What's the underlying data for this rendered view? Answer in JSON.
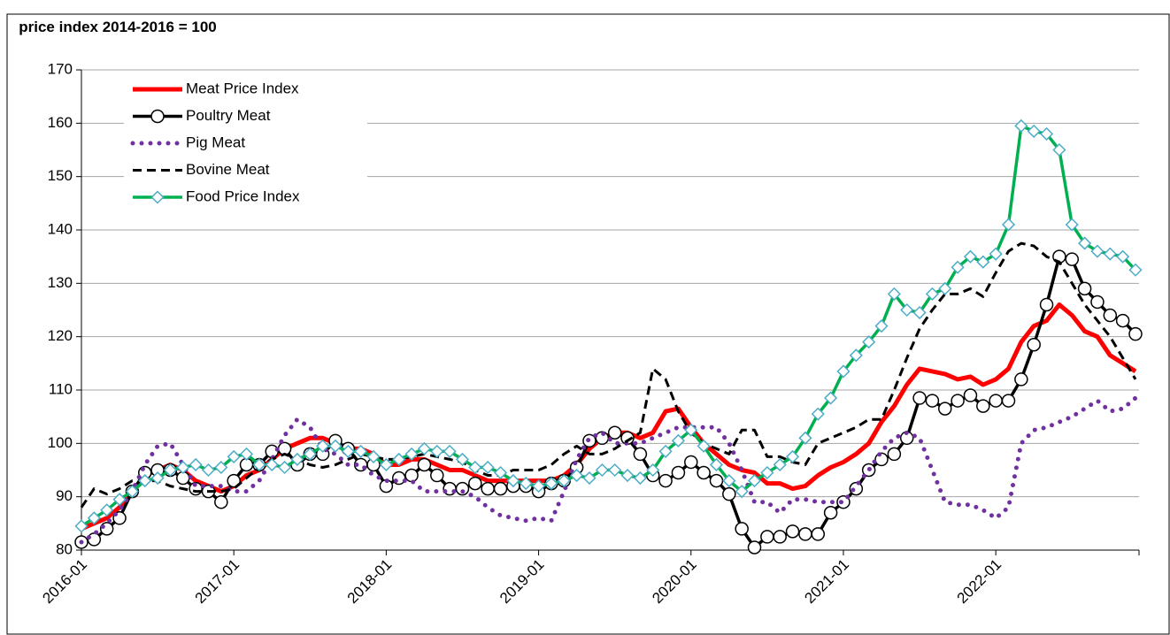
{
  "chart_data": {
    "type": "line",
    "y_label": "price index 2014-2016 = 100",
    "x": [
      "2016-01",
      null,
      null,
      null,
      null,
      null,
      null,
      null,
      null,
      null,
      null,
      null,
      "2017-01",
      null,
      null,
      null,
      null,
      null,
      null,
      null,
      null,
      null,
      null,
      null,
      "2018-01",
      null,
      null,
      null,
      null,
      null,
      null,
      null,
      null,
      null,
      null,
      null,
      "2019-01",
      null,
      null,
      null,
      null,
      null,
      null,
      null,
      null,
      null,
      null,
      null,
      "2020-01",
      null,
      null,
      null,
      null,
      null,
      null,
      null,
      null,
      null,
      null,
      null,
      "2021-01",
      null,
      null,
      null,
      null,
      null,
      null,
      null,
      null,
      null,
      null,
      null,
      "2022-01",
      null,
      null,
      null,
      null,
      null,
      null,
      null,
      null,
      null,
      null,
      null
    ],
    "ylim": [
      80,
      170
    ],
    "yticks": [
      80,
      90,
      100,
      110,
      120,
      130,
      140,
      150,
      160,
      170
    ],
    "grid": true,
    "legend": "upper left",
    "series": [
      {
        "name": "Meat Price Index",
        "color": "#ff0000",
        "linestyle": "solid",
        "marker": null,
        "values": [
          84,
          85,
          86,
          88,
          91,
          94,
          95,
          96,
          95,
          93,
          92,
          91,
          92,
          94,
          95,
          97,
          99,
          100,
          101,
          101,
          100,
          99,
          99,
          98,
          96,
          96,
          97,
          97,
          96,
          95,
          95,
          94,
          93,
          93,
          93,
          93,
          93,
          93,
          94,
          96,
          99,
          101,
          102,
          102,
          101,
          102,
          106,
          106.5,
          103,
          100,
          98,
          96,
          95,
          94.5,
          92.5,
          92.5,
          91.5,
          92,
          94,
          95.5,
          96.5,
          98,
          100,
          104,
          107,
          111,
          114,
          113.5,
          113,
          112,
          112.5,
          111,
          112,
          114,
          119,
          122,
          123,
          126,
          124,
          121,
          120,
          116.5,
          115,
          113.5
        ]
      },
      {
        "name": "Poultry Meat",
        "color": "#000000",
        "linestyle": "solid",
        "marker": "circle",
        "values": [
          81.5,
          82,
          84,
          86,
          91,
          94.5,
          95,
          95,
          93.5,
          91.5,
          91,
          89,
          93,
          96,
          96,
          98.5,
          99,
          96,
          98,
          98,
          100.5,
          99,
          96,
          96,
          92,
          93.5,
          94,
          96,
          94,
          91.5,
          91.5,
          92.5,
          91.5,
          91.5,
          92,
          92,
          91,
          92.5,
          93,
          95.5,
          100.5,
          101,
          102,
          101,
          98,
          94,
          93,
          94.5,
          96.5,
          94.5,
          93,
          90.5,
          84,
          80.5,
          82.5,
          82.5,
          83.5,
          83,
          83,
          87,
          89,
          91.5,
          95,
          97,
          98,
          101,
          108.5,
          108,
          106.5,
          108,
          109,
          107,
          108,
          108,
          112,
          118.5,
          126,
          135,
          134.5,
          129,
          126.5,
          124,
          123,
          120.5
        ]
      },
      {
        "name": "Pig Meat",
        "color": "#7030a0",
        "linestyle": "dotted",
        "marker": null,
        "values": [
          81.5,
          83,
          85,
          87.5,
          91,
          96,
          99.5,
          100,
          96,
          92,
          92,
          92,
          91,
          91,
          93,
          97,
          101.5,
          104.5,
          103,
          99,
          98,
          96,
          96,
          94,
          93,
          93,
          93,
          91,
          91,
          91,
          91,
          90,
          88,
          86.5,
          86,
          85.5,
          86,
          85.5,
          91,
          97,
          101,
          102,
          100,
          100,
          100,
          101,
          102,
          103,
          103,
          103,
          103,
          100,
          95,
          89,
          89,
          87,
          89.5,
          89.5,
          89,
          89,
          89,
          92,
          95,
          98.5,
          101,
          102,
          101,
          95,
          89,
          88.5,
          88.5,
          87.5,
          86,
          88,
          100,
          102.5,
          103,
          104,
          105,
          106.5,
          108,
          106,
          106.5,
          108.5
        ]
      },
      {
        "name": "Bovine Meat",
        "color": "#000000",
        "linestyle": "dashed",
        "marker": null,
        "values": [
          88,
          91.5,
          90.5,
          91.5,
          93,
          93,
          93,
          92,
          91.5,
          91,
          91,
          91,
          91.5,
          93.5,
          95.5,
          97,
          98,
          97,
          96,
          95.5,
          96,
          97,
          98,
          97.5,
          97,
          97,
          97.5,
          98,
          97.5,
          97,
          96.5,
          95,
          94,
          94,
          95,
          95,
          95,
          96,
          98,
          99.5,
          98,
          98,
          99,
          100.5,
          102,
          114,
          112,
          106,
          102,
          100,
          99,
          98,
          102.5,
          102.5,
          97.5,
          97.5,
          96.5,
          96,
          100,
          101,
          102,
          103,
          104.5,
          104.5,
          110,
          116,
          121.5,
          125,
          128,
          128,
          129,
          127.5,
          132,
          136,
          137.5,
          137,
          135,
          134,
          130,
          126,
          123,
          120,
          116,
          112
        ]
      },
      {
        "name": "Food Price Index",
        "color": "#00b050",
        "marker_color": "#4bacc6",
        "linestyle": "solid",
        "marker": "diamond",
        "values": [
          84.5,
          86,
          87.5,
          89.5,
          91,
          93,
          93.5,
          95,
          95.5,
          96,
          95,
          95.5,
          97.5,
          98,
          96,
          96,
          95.5,
          97,
          98,
          99.5,
          99.5,
          98.5,
          98.5,
          97.5,
          96,
          97,
          98,
          99,
          98.5,
          98.5,
          97,
          95.5,
          95.5,
          94.5,
          93,
          92.5,
          92,
          92.5,
          93,
          94,
          93.5,
          95,
          95,
          94,
          93.5,
          95,
          98.5,
          100.5,
          102.5,
          99.5,
          96,
          93,
          91,
          93,
          94.5,
          96,
          97.5,
          101,
          105.5,
          108.5,
          113.5,
          116.5,
          119,
          122,
          128,
          125,
          124.5,
          128,
          129,
          133,
          135,
          134,
          135.5,
          141,
          159.5,
          158.5,
          158,
          155,
          141,
          137.5,
          136,
          135.5,
          135,
          132.5
        ]
      }
    ]
  }
}
